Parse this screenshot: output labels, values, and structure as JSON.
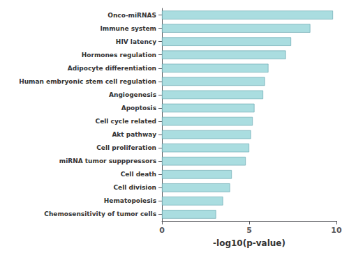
{
  "chart_data": {
    "type": "bar",
    "orientation": "horizontal",
    "categories": [
      "Chemosensitivity of tumor cells",
      "Hematopoiesis",
      "Cell division",
      "Cell death",
      "miRNA tumor supppressors",
      "Cell proliferation",
      "Akt pathway",
      "Cell cycle related",
      "Apoptosis",
      "Angiogenesis",
      "Human embryonic stem cell regulation",
      "Adipocyte differentiation",
      "Hormones regulation",
      "HIV latency",
      "Immune system",
      "Onco-miRNAS"
    ],
    "values": [
      3.1,
      3.5,
      3.9,
      4.0,
      4.8,
      5.0,
      5.1,
      5.2,
      5.3,
      5.8,
      5.9,
      6.1,
      7.1,
      7.4,
      8.5,
      9.8
    ],
    "color": "#aadde0",
    "xlabel": "-log10(p-value)",
    "xlim": [
      0,
      10
    ],
    "xticks": [
      0,
      5,
      10
    ],
    "grid": false
  }
}
